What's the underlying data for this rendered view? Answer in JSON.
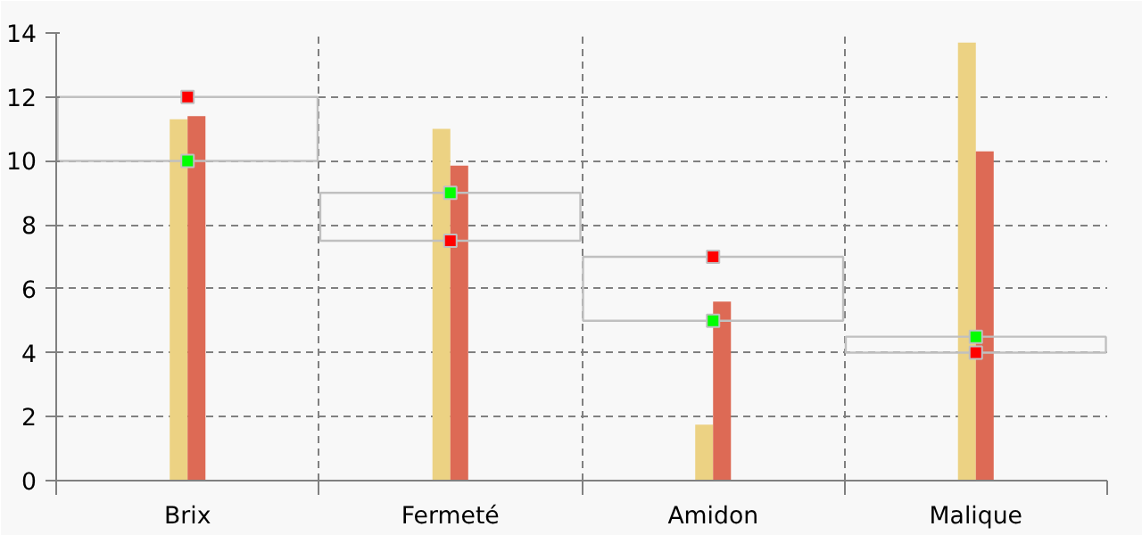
{
  "chart_data": {
    "type": "bar",
    "categories": [
      "Brix",
      "Fermeté",
      "Amidon",
      "Malique"
    ],
    "series": [
      {
        "color": "#ecd283",
        "values": [
          11.3,
          11.0,
          1.75,
          13.7
        ]
      },
      {
        "color": "#dd6a55",
        "values": [
          11.4,
          9.85,
          5.6,
          10.3
        ]
      },
      {
        "color": "#c0c0c0",
        "base": [
          10,
          7.5,
          5,
          4
        ],
        "values": [
          2,
          1.5,
          2,
          0.5
        ]
      },
      {
        "type": "scatter",
        "marker": "square",
        "color": "#00ff00",
        "x": [
          "Brix",
          "Fermeté",
          "Amidon",
          "Malique"
        ],
        "values": [
          10,
          9,
          5,
          4.5
        ]
      },
      {
        "type": "scatter",
        "marker": "square",
        "color": "#ff0000",
        "x": [
          "Brix",
          "Fermeté",
          "Amidon",
          "Malique"
        ],
        "values": [
          12,
          7.5,
          7,
          4
        ]
      }
    ],
    "ylim": [
      0,
      14
    ],
    "yticks": [
      0,
      2,
      4,
      6,
      8,
      10,
      12,
      14
    ],
    "grid": true
  }
}
